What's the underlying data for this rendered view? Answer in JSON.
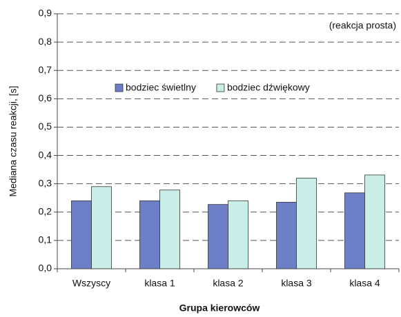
{
  "chart_data": {
    "type": "bar",
    "annotation": "(reakcja prosta)",
    "x_label": "Grupa kierowców",
    "y_label": "Mediana czasu reakcji, [s]",
    "categories": [
      "Wszyscy",
      "klasa 1",
      "klasa 2",
      "klasa 3",
      "klasa 4"
    ],
    "series": [
      {
        "name": "bodziec świetlny",
        "color": "#6d7fc6",
        "values": [
          0.24,
          0.24,
          0.227,
          0.235,
          0.268
        ]
      },
      {
        "name": "bodziec dźwiękowy",
        "color": "#c9ede7",
        "values": [
          0.29,
          0.278,
          0.24,
          0.32,
          0.331
        ]
      }
    ],
    "ylim": [
      0,
      0.9
    ],
    "yticks": [
      {
        "value": 0,
        "label": "0,0"
      },
      {
        "value": 0.1,
        "label": "0,1"
      },
      {
        "value": 0.2,
        "label": "0,2"
      },
      {
        "value": 0.3,
        "label": "0,3"
      },
      {
        "value": 0.4,
        "label": "0,4"
      },
      {
        "value": 0.5,
        "label": "0,5"
      },
      {
        "value": 0.6,
        "label": "0,6"
      },
      {
        "value": 0.7,
        "label": "0,7"
      },
      {
        "value": 0.8,
        "label": "0,8"
      },
      {
        "value": 0.9,
        "label": "0,9"
      }
    ],
    "grid": true
  }
}
